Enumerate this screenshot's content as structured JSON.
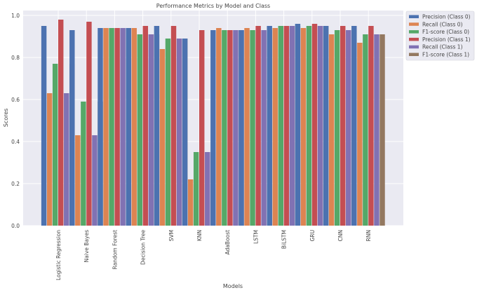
{
  "chart_data": {
    "type": "bar",
    "title": "Performance Metrics by Model and Class",
    "xlabel": "Models",
    "ylabel": "Scores",
    "ylim": [
      0,
      1.03
    ],
    "yticks": [
      "0.0",
      "0.2",
      "0.4",
      "0.6",
      "0.8",
      "1.0"
    ],
    "grid": true,
    "legend_position": "outside-top-right",
    "categories": [
      "Logistic Regression",
      "Naive Bayes",
      "Random Forest",
      "Decision Tree",
      "SVM",
      "KNN",
      "AdaBoost",
      "LSTM",
      "BiLSTM",
      "GRU",
      "CNN",
      "RNN"
    ],
    "series": [
      {
        "name": "Precision (Class 0)",
        "color": "#4c72b0",
        "values": [
          0.95,
          0.93,
          0.94,
          0.94,
          0.95,
          0.89,
          0.93,
          0.93,
          0.95,
          0.96,
          0.95,
          0.95
        ]
      },
      {
        "name": "Recall (Class 0)",
        "color": "#dd8452",
        "values": [
          0.63,
          0.43,
          0.94,
          0.94,
          0.84,
          0.22,
          0.94,
          0.94,
          0.94,
          0.94,
          0.91,
          0.87
        ]
      },
      {
        "name": "F1-score (Class 0)",
        "color": "#55a868",
        "values": [
          0.77,
          0.59,
          0.94,
          0.91,
          0.89,
          0.35,
          0.93,
          0.93,
          0.95,
          0.95,
          0.93,
          0.91
        ]
      },
      {
        "name": "Precision (Class 1)",
        "color": "#c44e52",
        "values": [
          0.98,
          0.97,
          0.94,
          0.95,
          0.95,
          0.93,
          0.93,
          0.95,
          0.95,
          0.96,
          0.95,
          0.95
        ]
      },
      {
        "name": "Recall (Class 1)",
        "color": "#8172b3",
        "values": [
          0.63,
          0.43,
          0.94,
          0.91,
          0.89,
          0.35,
          0.93,
          0.93,
          0.95,
          0.95,
          0.93,
          0.91
        ]
      },
      {
        "name": "F1-score (Class 1)",
        "color": "#937860",
        "values": [
          0.77,
          0.59,
          0.94,
          0.91,
          0.89,
          0.35,
          0.93,
          0.93,
          0.95,
          0.95,
          0.93,
          0.91
        ]
      }
    ]
  }
}
